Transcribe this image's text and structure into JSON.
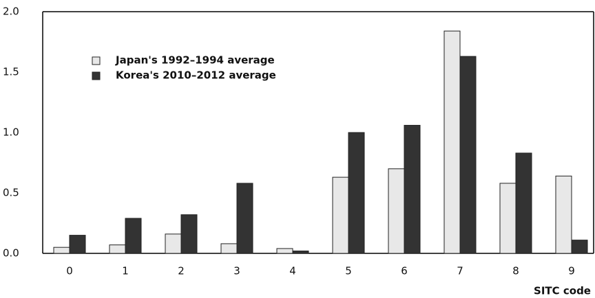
{
  "chart_data": {
    "type": "bar",
    "x_label": "SITC code",
    "categories": [
      "0",
      "1",
      "2",
      "3",
      "4",
      "5",
      "6",
      "7",
      "8",
      "9"
    ],
    "series": [
      {
        "name": "Japan's 1992–1994 average",
        "color": "#e8e8e8",
        "values": [
          0.05,
          0.07,
          0.16,
          0.08,
          0.04,
          0.63,
          0.7,
          1.84,
          0.58,
          0.64
        ]
      },
      {
        "name": "Korea's 2010–2012 average",
        "color": "#333333",
        "values": [
          0.15,
          0.29,
          0.32,
          0.58,
          0.02,
          1.0,
          1.06,
          1.63,
          0.83,
          0.11
        ]
      }
    ],
    "ylim": [
      0,
      2
    ],
    "yticks": [
      {
        "value": 0,
        "label": "0.0"
      },
      {
        "value": 0.5,
        "label": "0.5"
      },
      {
        "value": 1,
        "label": "1.0"
      },
      {
        "value": 1.5,
        "label": "1.5"
      },
      {
        "value": 2,
        "label": "2.0"
      }
    ],
    "legend": "upper-left"
  }
}
